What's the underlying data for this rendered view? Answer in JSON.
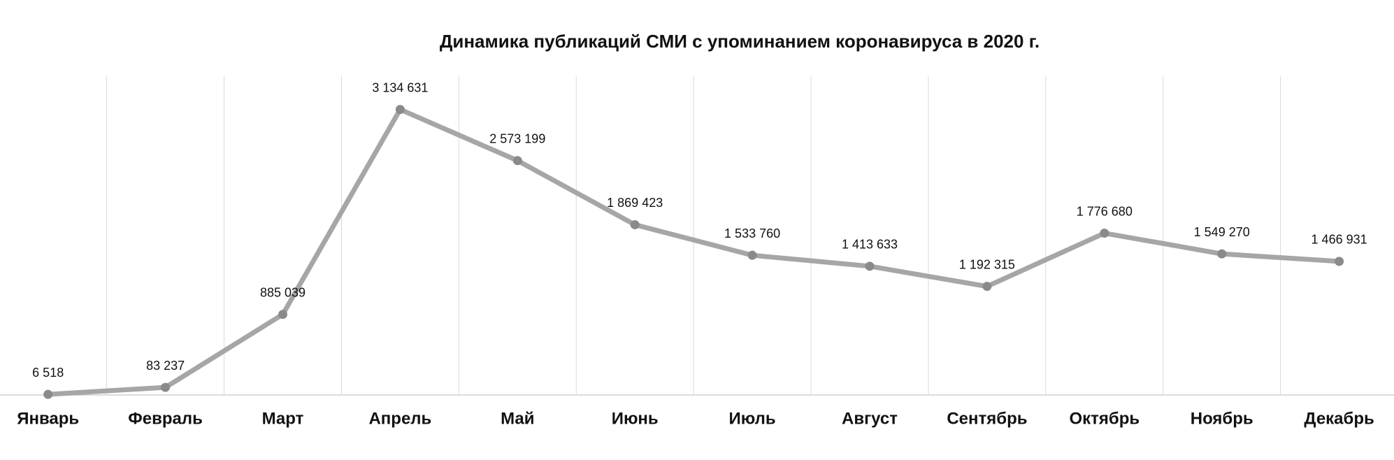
{
  "chart_data": {
    "type": "line",
    "title": "Динамика публикаций СМИ с упоминанием коронавируса в 2020 г.",
    "categories": [
      "Январь",
      "Февраль",
      "Март",
      "Апрель",
      "Май",
      "Июнь",
      "Июль",
      "Август",
      "Сентябрь",
      "Октябрь",
      "Ноябрь",
      "Декабрь"
    ],
    "series": [
      {
        "color": "#a6a6a6",
        "values": [
          6518,
          83237,
          885039,
          3134631,
          2573199,
          1869423,
          1533760,
          1413633,
          1192315,
          1776680,
          1549270,
          1466931
        ],
        "value_labels": [
          "6 518",
          "83 237",
          "885 039",
          "3 134 631",
          "2 573 199",
          "1 869 423",
          "1 533 760",
          "1 413 633",
          "1 192 315",
          "1 776 680",
          "1 549 270",
          "1 466 931"
        ]
      }
    ],
    "ylim": [
      0,
      3500000
    ],
    "grid": true
  }
}
